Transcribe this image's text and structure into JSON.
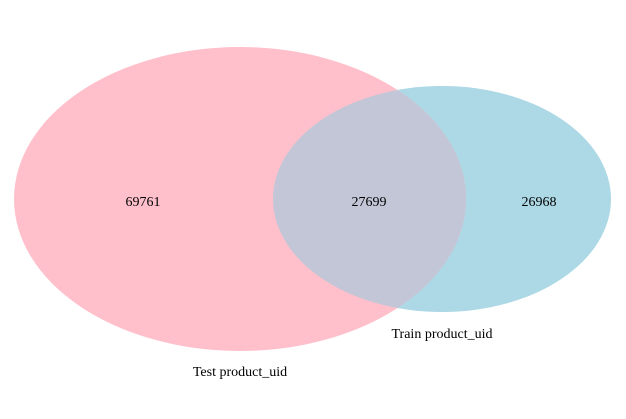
{
  "diagram": {
    "type": "venn2",
    "sets": [
      {
        "label": "Test product_uid",
        "color": "#ffc0cb",
        "only_count": "69761"
      },
      {
        "label": "Train product_uid",
        "color": "#add8e6",
        "only_count": "26968"
      }
    ],
    "intersection_count": "27699",
    "intersection_color": "#c3c6d6"
  }
}
